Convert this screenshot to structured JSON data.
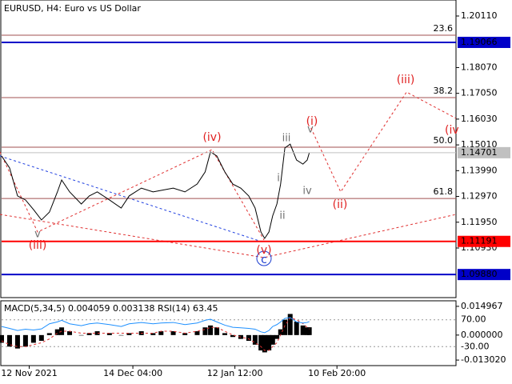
{
  "chart_data": [
    {
      "type": "line",
      "title": "EURUSD, H4:  Euro vs US Dollar",
      "x": [
        0,
        15,
        30,
        45,
        60,
        75,
        90,
        105,
        113,
        128,
        150,
        165,
        180,
        203,
        225,
        240,
        263,
        285,
        300,
        323,
        345,
        368,
        383,
        393,
        405,
        420,
        435,
        450,
        465,
        477,
        488,
        495,
        503,
        510,
        518,
        525,
        533,
        543,
        555,
        567,
        575,
        579
      ],
      "xlim": [
        0,
        855
      ],
      "xticks": [
        {
          "value": 52,
          "label": "12 Nov 2021"
        },
        {
          "value": 247,
          "label": "14 Dec 04:00"
        },
        {
          "value": 439,
          "label": "12 Jan 12:00"
        },
        {
          "value": 631,
          "label": "10 Feb 20:00"
        }
      ],
      "ylim": [
        1.08967,
        1.20743
      ],
      "yticks": [
        {
          "value": 1.2011,
          "label": "1.20110"
        },
        {
          "value": 1.1807,
          "label": "1.18070"
        },
        {
          "value": 1.1705,
          "label": "1.17050"
        },
        {
          "value": 1.1603,
          "label": "1.16030"
        },
        {
          "value": 1.1501,
          "label": "1.15010"
        },
        {
          "value": 1.1399,
          "label": "1.13990"
        },
        {
          "value": 1.1297,
          "label": "1.12970"
        },
        {
          "value": 1.1195,
          "label": "1.11950"
        },
        {
          "value": 1.1093,
          "label": "1.10930"
        }
      ],
      "series": [
        {
          "color": "#000000",
          "values": [
            1.1457,
            1.141,
            1.1299,
            1.1283,
            1.1245,
            1.1204,
            1.1235,
            1.1315,
            1.1362,
            1.1315,
            1.1267,
            1.1299,
            1.1315,
            1.1283,
            1.1251,
            1.1299,
            1.133,
            1.1315,
            1.1321,
            1.133,
            1.1315,
            1.1346,
            1.1394,
            1.1473,
            1.1457,
            1.1394,
            1.1346,
            1.133,
            1.1299,
            1.1251,
            1.1156,
            1.1131,
            1.1156,
            1.122,
            1.1267,
            1.1346,
            1.1489,
            1.1504,
            1.1441,
            1.1425,
            1.1441,
            1.147
          ]
        }
      ],
      "projection": {
        "color": "#e03030",
        "x": [
          582,
          638,
          762,
          855
        ],
        "values": [
          1.1568,
          1.1315,
          1.171,
          1.1606
        ]
      },
      "levels": [
        {
          "value": 1.19066,
          "color": "#0000c8"
        },
        {
          "value": 1.14701,
          "color": "#c0c0c0"
        },
        {
          "value": 1.11191,
          "color": "#ff0000"
        },
        {
          "value": 1.0988,
          "label": "1.09880",
          "color": "#0000c8"
        }
      ],
      "fib_levels": [
        {
          "name": "23.6",
          "value": 1.1935
        },
        {
          "name": "38.2",
          "value": 1.1688
        },
        {
          "name": "50.0",
          "value": 1.1492
        },
        {
          "name": "61.8",
          "value": 1.1289
        }
      ],
      "annotations": [
        "(iv)",
        "(iii)",
        "v",
        "(i)",
        "(ii)",
        "(iii)",
        "(iv",
        "iii",
        "i",
        "ii",
        "iv",
        "v",
        "(v)",
        "c"
      ]
    },
    {
      "type": "bar",
      "title": "MACD(5,34,5)",
      "readouts": [
        0.004059,
        0.003138
      ],
      "rsi_title": "RSI(14)",
      "rsi_readout": 63.45,
      "x": [
        0,
        15,
        30,
        45,
        60,
        75,
        90,
        105,
        113,
        128,
        150,
        165,
        180,
        203,
        225,
        240,
        263,
        285,
        300,
        323,
        345,
        368,
        383,
        393,
        405,
        420,
        435,
        450,
        465,
        477,
        488,
        495,
        503,
        510,
        518,
        525,
        533,
        543,
        555,
        567,
        575,
        579
      ],
      "ylim": [
        -0.0159,
        0.01785
      ],
      "yticks": [
        0.014967,
        {
          "value": 0,
          "label": "0.000000"
        },
        {
          "value": -0.01302,
          "label": "-0.013020"
        }
      ],
      "y2lim": [
        -100.6,
        140.6
      ],
      "y2ticks": [
        {
          "value": 70,
          "label": "70.00"
        },
        {
          "value": -30,
          "label": "-30.00"
        }
      ],
      "grid": true,
      "series": [
        {
          "color": "#000000",
          "values": [
            -0.004,
            -0.006,
            -0.007,
            -0.006,
            -0.004,
            -0.003,
            0.001,
            0.003,
            0.004,
            0.002,
            0,
            0.001,
            0.002,
            0.001,
            0,
            0.001,
            0.002,
            0.001,
            0.002,
            0.002,
            0.001,
            0.002,
            0.004,
            0.005,
            0.004,
            0.001,
            -0.001,
            -0.002,
            -0.003,
            -0.005,
            -0.008,
            -0.009,
            -0.008,
            -0.005,
            -0.002,
            0.003,
            0.008,
            0.011,
            0.007,
            0.005,
            0.004,
            0.004059
          ]
        },
        {
          "color": "#e03030",
          "dash": true,
          "values": [
            -0.003,
            -0.005,
            -0.006,
            -0.006,
            -0.005,
            -0.004,
            -0.002,
            0.001,
            0.002,
            0.002,
            0.001,
            0.001,
            0.001,
            0.001,
            0.001,
            0.001,
            0.001,
            0.001,
            0.002,
            0.002,
            0.001,
            0.002,
            0.003,
            0.004,
            0.004,
            0.002,
            0,
            -0.001,
            -0.002,
            -0.004,
            -0.006,
            -0.008,
            -0.008,
            -0.006,
            -0.004,
            0,
            0.005,
            0.009,
            0.008,
            0.006,
            0.004,
            0.003138
          ]
        },
        {
          "color": "#1e90ff",
          "axis": "y2",
          "values": [
            45,
            38,
            30,
            35,
            32,
            36,
            55,
            62,
            68,
            55,
            48,
            55,
            58,
            52,
            45,
            55,
            60,
            55,
            58,
            60,
            52,
            58,
            68,
            72,
            62,
            50,
            42,
            40,
            38,
            35,
            25,
            22,
            30,
            45,
            52,
            62,
            75,
            78,
            62,
            58,
            60,
            63.45
          ]
        }
      ]
    }
  ]
}
